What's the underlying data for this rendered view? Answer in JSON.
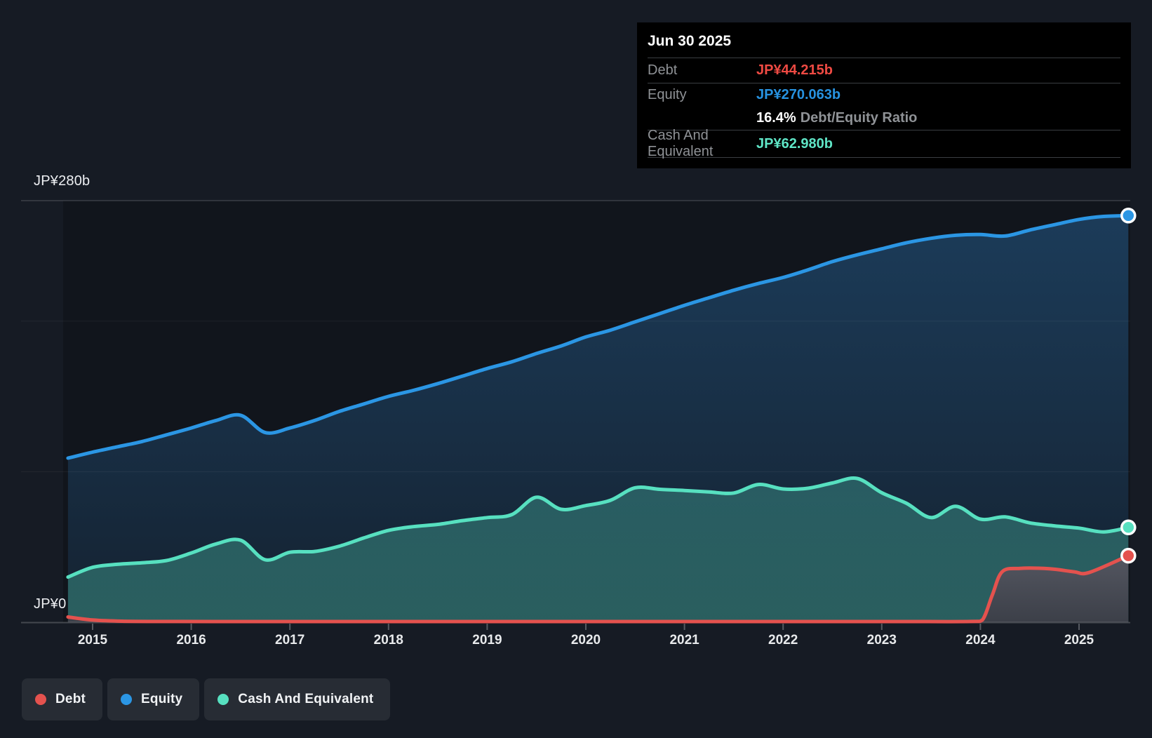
{
  "colors": {
    "page_bg": "#161b24",
    "tooltip_bg": "#000000",
    "debt": "#e4524e",
    "equity": "#2b96e4",
    "cash": "#57e0c0",
    "debt_value_text": "#ef4a43",
    "equity_value_text": "#2792e0",
    "cash_value_text": "#5fe5c6"
  },
  "y_axis": {
    "top_label": "JP¥280b",
    "zero_label": "JP¥0"
  },
  "x_axis": {
    "labels": [
      "2015",
      "2016",
      "2017",
      "2018",
      "2019",
      "2020",
      "2021",
      "2022",
      "2023",
      "2024",
      "2025"
    ]
  },
  "tooltip": {
    "date": "Jun 30 2025",
    "debt_label": "Debt",
    "debt_value": "JP¥44.215b",
    "equity_label": "Equity",
    "equity_value": "JP¥270.063b",
    "ratio_value": "16.4%",
    "ratio_label": "Debt/Equity Ratio",
    "cash_label": "Cash And Equivalent",
    "cash_value": "JP¥62.980b"
  },
  "legend": {
    "items": [
      {
        "label": "Debt",
        "color": "#e4524e"
      },
      {
        "label": "Equity",
        "color": "#2b96e4"
      },
      {
        "label": "Cash And Equivalent",
        "color": "#57e0c0"
      }
    ]
  },
  "chart_data": {
    "type": "area",
    "unit": "JP¥ billions",
    "x_ticks": [
      2015,
      2016,
      2017,
      2018,
      2019,
      2020,
      2021,
      2022,
      2023,
      2024,
      2025
    ],
    "ylim": [
      0,
      280
    ],
    "y_gridlines": [
      280,
      200,
      100,
      0
    ],
    "end_date": "Jun 30 2025",
    "series": [
      {
        "name": "Equity",
        "color": "#2b96e4",
        "x": [
          2014.75,
          2015,
          2015.25,
          2015.5,
          2015.75,
          2016,
          2016.25,
          2016.5,
          2016.75,
          2017,
          2017.25,
          2017.5,
          2017.75,
          2018,
          2018.25,
          2018.5,
          2018.75,
          2019,
          2019.25,
          2019.5,
          2019.75,
          2020,
          2020.25,
          2020.5,
          2020.75,
          2021,
          2021.25,
          2021.5,
          2021.75,
          2022,
          2022.25,
          2022.5,
          2022.75,
          2023,
          2023.25,
          2023.5,
          2023.75,
          2024,
          2024.25,
          2024.5,
          2024.75,
          2025,
          2025.25,
          2025.5
        ],
        "values": [
          109,
          113,
          116.5,
          120,
          124.5,
          129,
          134,
          137.5,
          126,
          129,
          134,
          140,
          145,
          150,
          154,
          158.5,
          163.5,
          168.5,
          173,
          178.5,
          183.5,
          189.5,
          194,
          199.5,
          205,
          210.5,
          215.5,
          220.5,
          225,
          229,
          234,
          239.5,
          244,
          248,
          252,
          255,
          257,
          257.5,
          256.5,
          260.5,
          264,
          267.5,
          269.5,
          270.063
        ]
      },
      {
        "name": "Cash And Equivalent",
        "color": "#57e0c0",
        "x": [
          2014.75,
          2015,
          2015.25,
          2015.5,
          2015.75,
          2016,
          2016.25,
          2016.5,
          2016.75,
          2017,
          2017.25,
          2017.5,
          2017.75,
          2018,
          2018.25,
          2018.5,
          2018.75,
          2019,
          2019.25,
          2019.5,
          2019.75,
          2020,
          2020.25,
          2020.5,
          2020.75,
          2021,
          2021.25,
          2021.5,
          2021.75,
          2022,
          2022.25,
          2022.5,
          2022.75,
          2023,
          2023.25,
          2023.5,
          2023.75,
          2024,
          2024.25,
          2024.5,
          2024.75,
          2025,
          2025.25,
          2025.5
        ],
        "values": [
          30,
          36.5,
          38.5,
          39.5,
          41,
          46,
          52,
          54.5,
          41.5,
          46.5,
          47,
          50.5,
          56,
          61,
          63.5,
          65,
          67.5,
          69.5,
          71.5,
          83,
          75,
          77.5,
          81,
          89.3,
          88.3,
          87.5,
          86.5,
          85.8,
          91.5,
          88.5,
          89,
          92.5,
          95.5,
          86,
          79,
          69.5,
          77,
          68.5,
          70,
          66,
          64,
          62.5,
          60,
          62.98
        ]
      },
      {
        "name": "Debt",
        "color": "#e4524e",
        "x": [
          2014.75,
          2015,
          2015.3,
          2015.75,
          2016.5,
          2017.25,
          2018,
          2018.75,
          2019.5,
          2020.25,
          2021,
          2021.75,
          2022.5,
          2023.25,
          2023.9,
          2024.02,
          2024.12,
          2024.22,
          2024.4,
          2024.7,
          2024.95,
          2025.1,
          2025.5
        ],
        "values": [
          3.5,
          1.5,
          0.7,
          0.5,
          0.45,
          0.45,
          0.45,
          0.45,
          0.45,
          0.45,
          0.45,
          0.45,
          0.45,
          0.45,
          0.5,
          1.5,
          18,
          33.5,
          35.8,
          35.5,
          33.5,
          33,
          44.215
        ]
      }
    ]
  }
}
